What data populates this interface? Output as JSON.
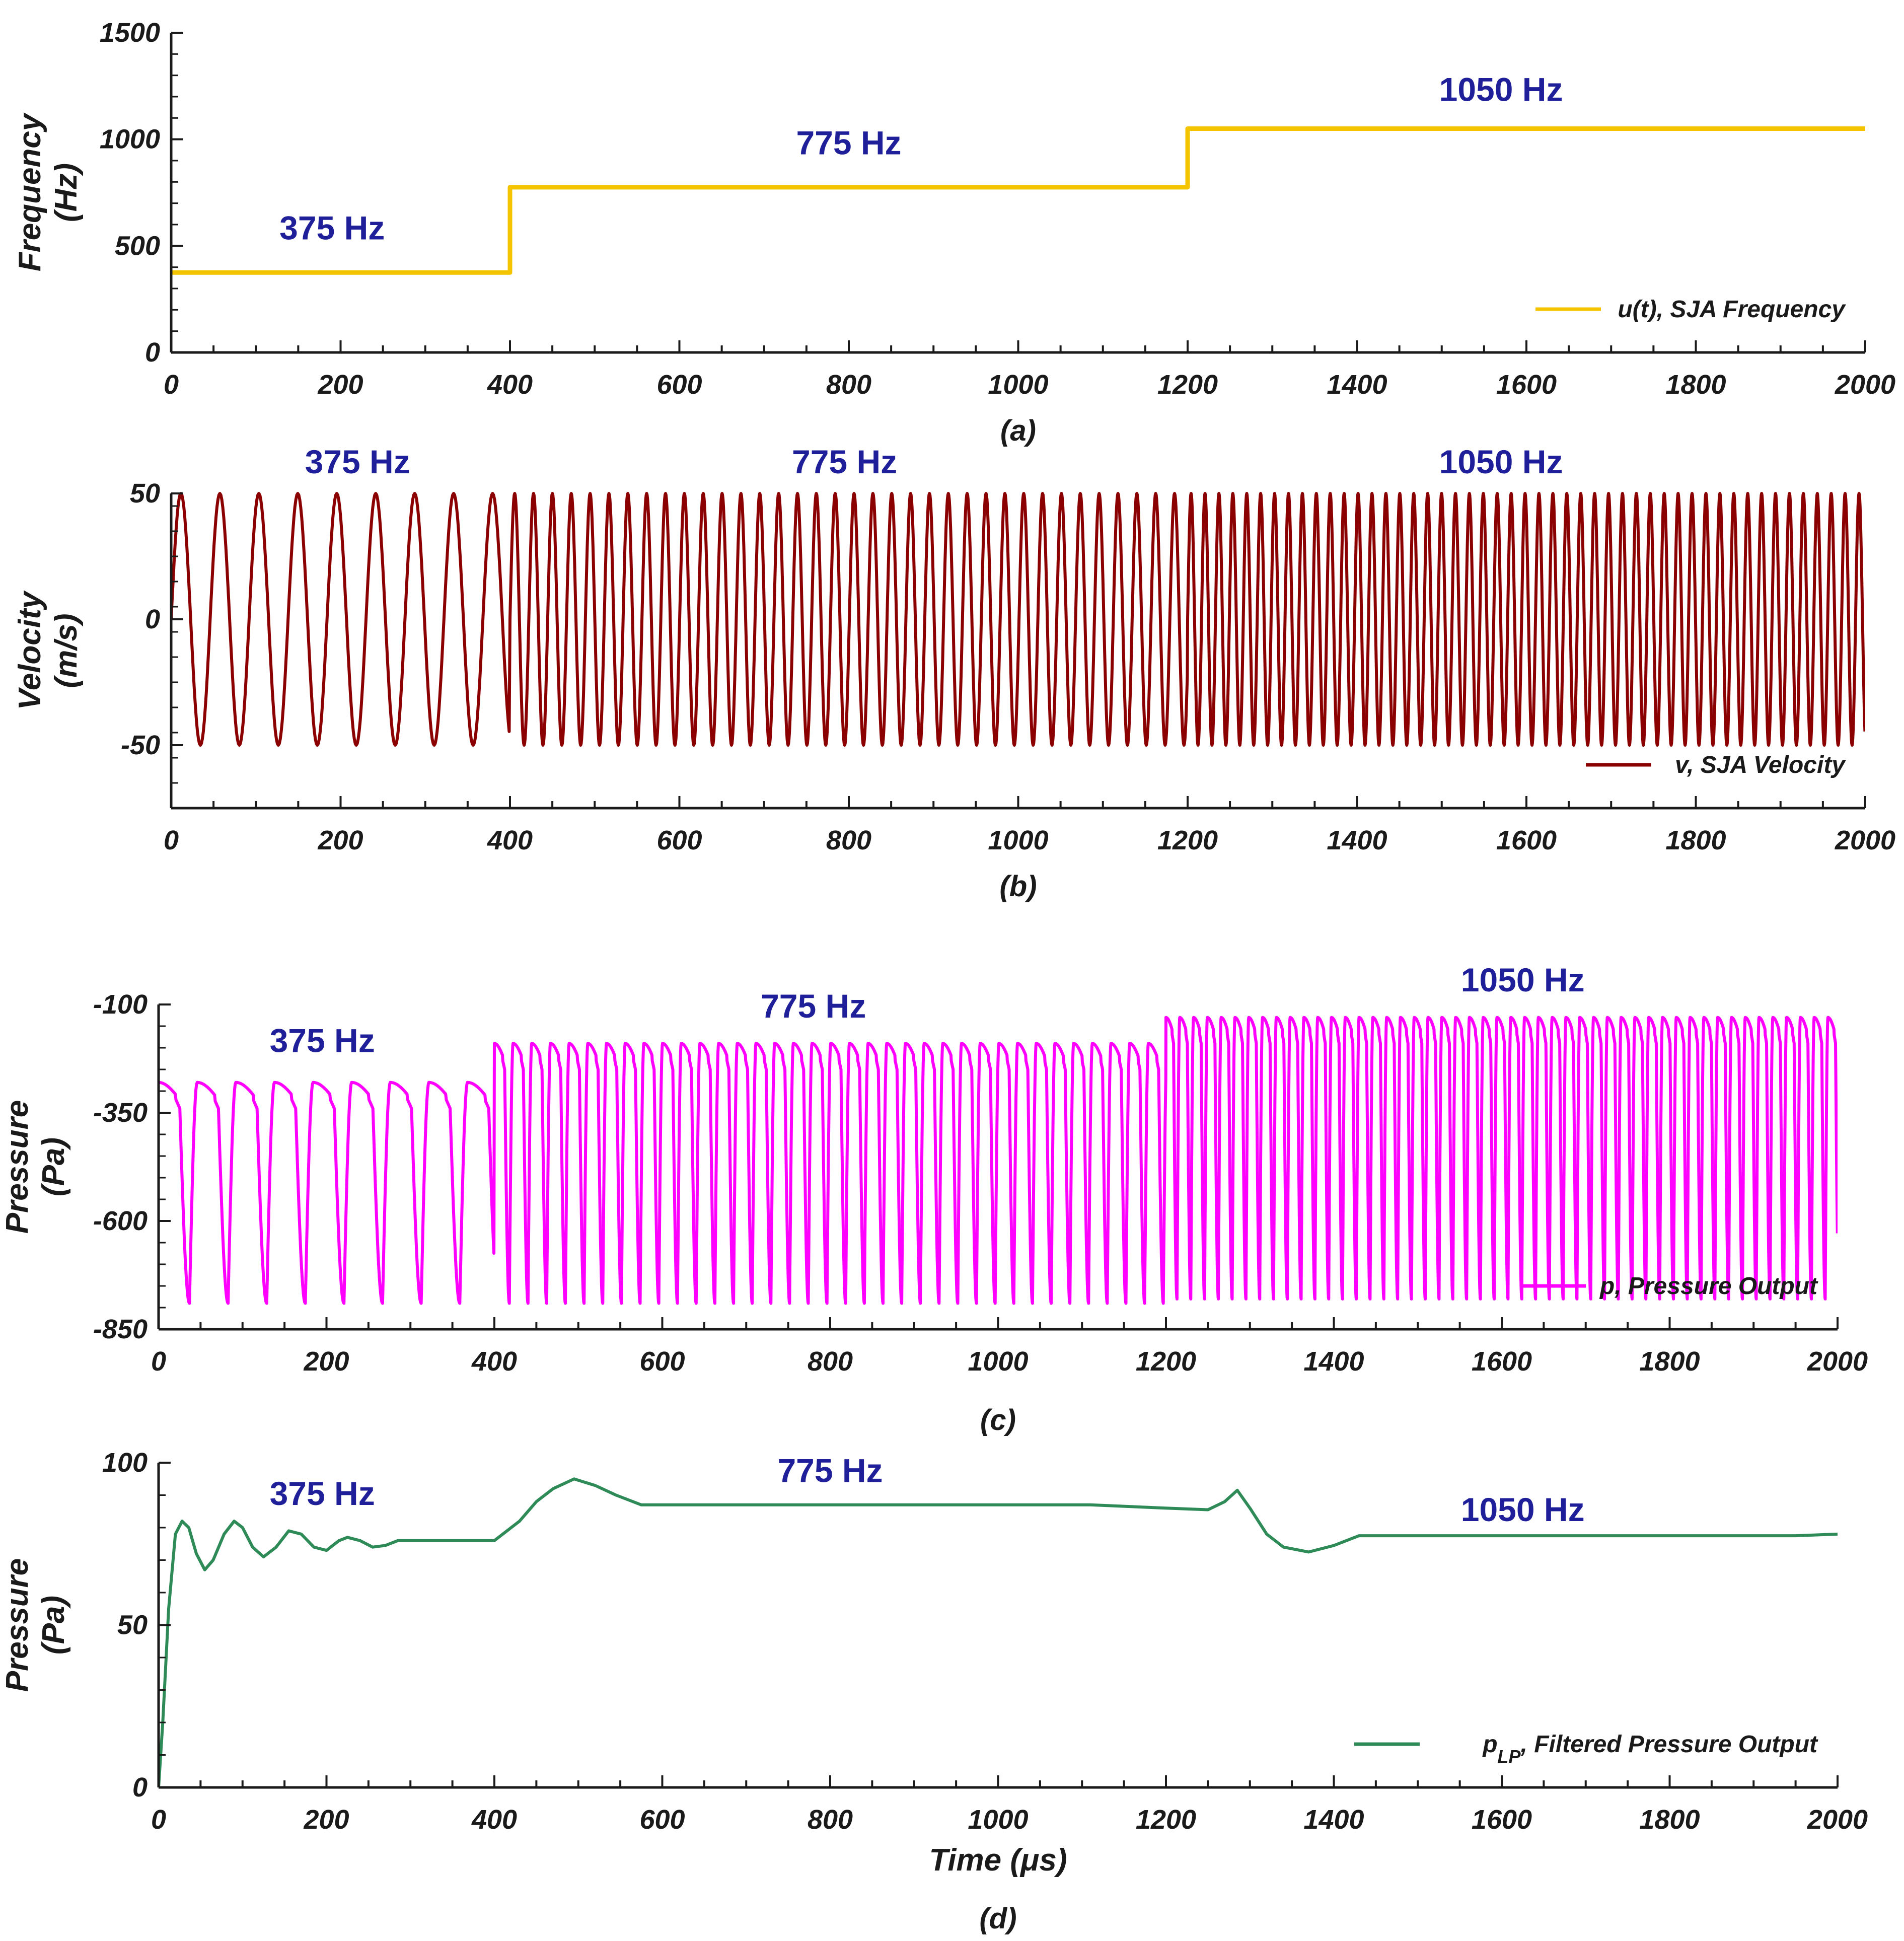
{
  "chart_data": [
    {
      "id": "a",
      "type": "line",
      "caption": "(a)",
      "ylabel": [
        "Frequency",
        "(Hz)"
      ],
      "xlabel": "",
      "xlim": [
        0,
        2000
      ],
      "ylim": [
        0,
        1500
      ],
      "xticks": [
        "0",
        "200",
        "400",
        "600",
        "800",
        "1000",
        "1200",
        "1400",
        "1600",
        "1800",
        "2000"
      ],
      "yticks": [
        "0",
        "500",
        "1000",
        "1500"
      ],
      "series": [
        {
          "name": "u(t), SJA Frequency",
          "color": "#f5c400",
          "kind": "step",
          "x": [
            0,
            400,
            400,
            1200,
            1200,
            2000
          ],
          "y": [
            375,
            375,
            775,
            775,
            1050,
            1050
          ]
        }
      ],
      "annotations": [
        {
          "text": "375 Hz",
          "x": 190,
          "y": 530
        },
        {
          "text": "775 Hz",
          "x": 800,
          "y": 930
        },
        {
          "text": "1050 Hz",
          "x": 1570,
          "y": 1180
        }
      ],
      "legend": {
        "label": "u(t), SJA Frequency",
        "position": "bottom-right"
      }
    },
    {
      "id": "b",
      "type": "line",
      "caption": "(b)",
      "ylabel": [
        "Velocity",
        "(m/s)"
      ],
      "xlabel": "",
      "xlim": [
        0,
        2000
      ],
      "ylim": [
        -75,
        50
      ],
      "xticks": [
        "0",
        "200",
        "400",
        "600",
        "800",
        "1000",
        "1200",
        "1400",
        "1600",
        "1800",
        "2000"
      ],
      "yticks": [
        "-50",
        "0",
        "50"
      ],
      "series": [
        {
          "name": "v, SJA Velocity",
          "color": "#8b0000",
          "kind": "sine",
          "amplitude": 50,
          "segments": [
            {
              "from": 0,
              "to": 400,
              "frequency_hz": 375
            },
            {
              "from": 400,
              "to": 1200,
              "frequency_hz": 775
            },
            {
              "from": 1200,
              "to": 2000,
              "frequency_hz": 1050
            }
          ],
          "period_scale_us": 46.0
        }
      ],
      "annotations": [
        {
          "text": "375 Hz",
          "x": 220,
          "y": 58
        },
        {
          "text": "775 Hz",
          "x": 795,
          "y": 58
        },
        {
          "text": "1050 Hz",
          "x": 1570,
          "y": 58
        }
      ],
      "legend": {
        "label": "v, SJA Velocity",
        "position": "bottom-right"
      }
    },
    {
      "id": "c",
      "type": "line",
      "caption": "(c)",
      "ylabel": [
        "Pressure",
        "(Pa)"
      ],
      "xlabel": "",
      "xlim": [
        0,
        2000
      ],
      "ylim": [
        -850,
        -100
      ],
      "xticks": [
        "0",
        "200",
        "400",
        "600",
        "800",
        "1000",
        "1200",
        "1400",
        "1600",
        "1800",
        "2000"
      ],
      "yticks": [
        "-850",
        "-600",
        "-350",
        "-100"
      ],
      "series": [
        {
          "name": "p, Pressure Output",
          "color": "#ff00ff",
          "kind": "pulse",
          "segments": [
            {
              "from": 0,
              "to": 400,
              "frequency_hz": 375,
              "top": -280,
              "bottom": -790
            },
            {
              "from": 400,
              "to": 1200,
              "frequency_hz": 775,
              "top": -190,
              "bottom": -790
            },
            {
              "from": 1200,
              "to": 2000,
              "frequency_hz": 1050,
              "top": -130,
              "bottom": -780
            }
          ],
          "period_scale_us": 46.0
        }
      ],
      "annotations": [
        {
          "text": "375 Hz",
          "x": 195,
          "y": -210
        },
        {
          "text": "775 Hz",
          "x": 780,
          "y": -130
        },
        {
          "text": "1050 Hz",
          "x": 1625,
          "y": -70
        }
      ],
      "legend": {
        "label": "p, Pressure Output",
        "position": "bottom-right"
      }
    },
    {
      "id": "d",
      "type": "line",
      "caption": "(d)",
      "ylabel": [
        "Pressure",
        "(Pa)"
      ],
      "xlabel": "Time (μs)",
      "xlim": [
        0,
        2000
      ],
      "ylim": [
        0,
        100
      ],
      "xticks": [
        "0",
        "200",
        "400",
        "600",
        "800",
        "1000",
        "1200",
        "1400",
        "1600",
        "1800",
        "2000"
      ],
      "yticks": [
        "0",
        "50",
        "100"
      ],
      "series": [
        {
          "name": "p_LP, Filtered Pressure Output",
          "color": "#2e8b57",
          "kind": "points",
          "x": [
            0,
            5,
            12,
            20,
            28,
            36,
            45,
            55,
            65,
            78,
            90,
            100,
            112,
            125,
            140,
            155,
            170,
            185,
            200,
            215,
            225,
            240,
            255,
            270,
            285,
            300,
            320,
            350,
            400,
            430,
            450,
            470,
            495,
            520,
            545,
            575,
            650,
            800,
            1000,
            1110,
            1200,
            1250,
            1270,
            1285,
            1300,
            1320,
            1340,
            1370,
            1400,
            1430,
            1500,
            1700,
            1950,
            2000
          ],
          "y": [
            0,
            20,
            55,
            78,
            82,
            80,
            72,
            67,
            70,
            78,
            82,
            80,
            74,
            71,
            74,
            79,
            78,
            74,
            73,
            76,
            77,
            76,
            74,
            74.5,
            76,
            76,
            76,
            76,
            76,
            82,
            88,
            92,
            95,
            93,
            90,
            87,
            87,
            87,
            87,
            87,
            86,
            85.5,
            88,
            91.5,
            86,
            78,
            74,
            72.5,
            74.5,
            77.5,
            77.5,
            77.5,
            77.5,
            78
          ]
        }
      ],
      "annotations": [
        {
          "text": "375 Hz",
          "x": 195,
          "y": 87
        },
        {
          "text": "775 Hz",
          "x": 800,
          "y": 94
        },
        {
          "text": "1050 Hz",
          "x": 1625,
          "y": 82
        }
      ],
      "legend": {
        "label": "p_LP, Filtered Pressure Output",
        "position": "bottom-right"
      }
    }
  ]
}
